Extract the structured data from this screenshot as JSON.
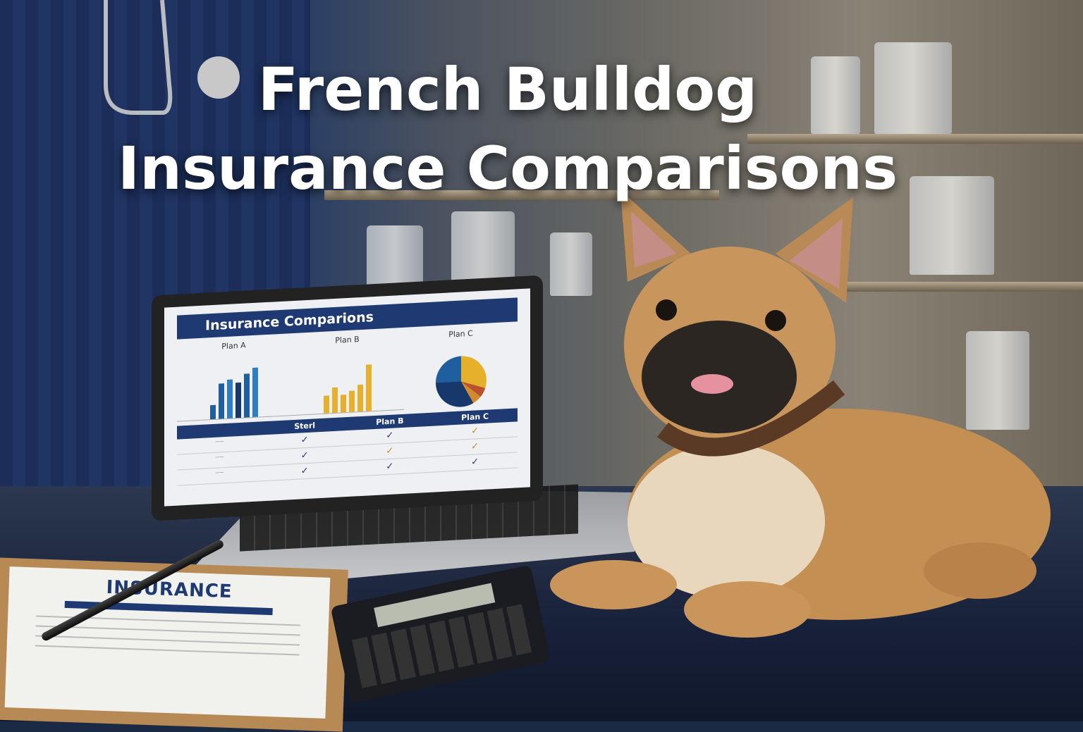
{
  "headline": {
    "line1": "French Bulldog",
    "line2": "Insurance Comparisons"
  },
  "laptop_screen": {
    "title": "Insurance Comparions",
    "plans": [
      "Plan A",
      "Plan B",
      "Plan C"
    ],
    "table_header": [
      "Sterl",
      "Plan B",
      "Plan C"
    ],
    "checks": [
      "✓",
      "✓",
      "✓"
    ]
  },
  "clipboard": {
    "heading": "INSURANCE"
  },
  "colors": {
    "navy": "#1f3a72",
    "gold": "#e7b02a",
    "fawn": "#c99555"
  }
}
